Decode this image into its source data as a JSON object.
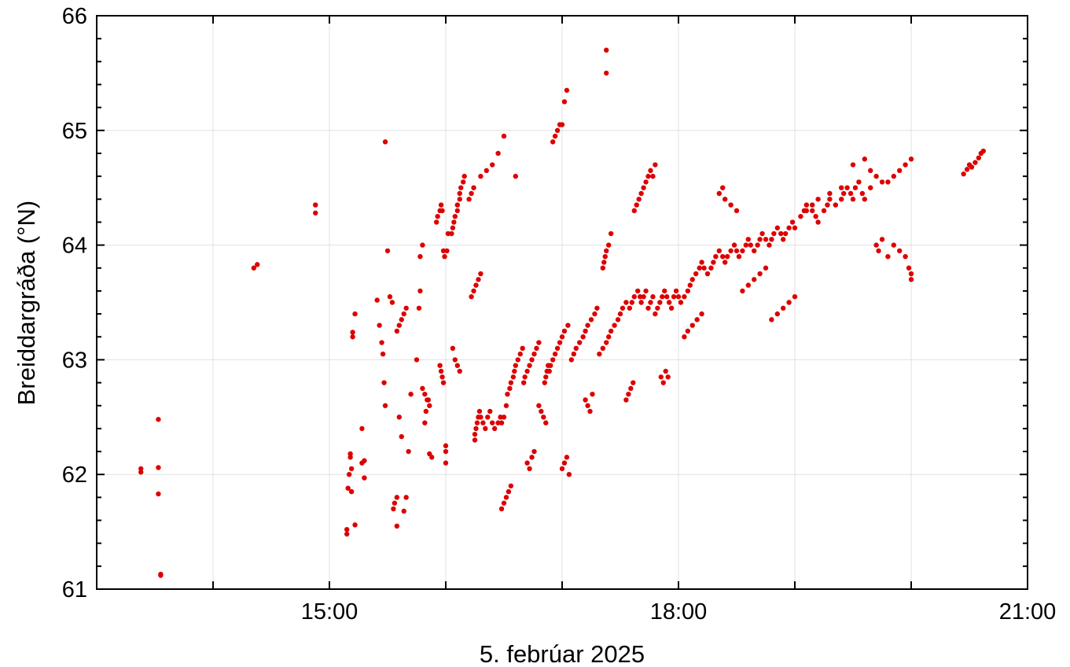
{
  "chart_data": {
    "type": "scatter",
    "xlabel": "5. febrúar 2025",
    "ylabel": "Breiddargráða (°N)",
    "x_unit": "hours since 00:00, 5 Feb 2025",
    "xlim": [
      13.0,
      21.0
    ],
    "ylim": [
      61,
      66
    ],
    "x_ticks": [
      {
        "value": 15,
        "label": "15:00"
      },
      {
        "value": 18,
        "label": "18:00"
      },
      {
        "value": 21,
        "label": "21:00"
      }
    ],
    "y_ticks": [
      {
        "value": 61,
        "label": "61"
      },
      {
        "value": 62,
        "label": "62"
      },
      {
        "value": 63,
        "label": "63"
      },
      {
        "value": 64,
        "label": "64"
      },
      {
        "value": 65,
        "label": "65"
      },
      {
        "value": 66,
        "label": "66"
      }
    ],
    "grid": true,
    "point_color": "#dd0000",
    "series": [
      {
        "x": [
          13.38,
          13.38,
          13.53,
          13.53,
          13.53,
          13.55,
          13.55,
          14.35,
          14.38,
          14.88,
          14.88,
          15.15,
          15.15,
          15.16,
          15.17,
          15.18,
          15.18,
          15.19,
          15.19,
          15.2,
          15.2,
          15.22,
          15.22,
          15.28,
          15.28,
          15.3,
          15.3,
          15.41,
          15.43,
          15.45,
          15.46,
          15.47,
          15.48,
          15.55,
          15.56,
          15.58,
          15.58,
          15.6,
          15.62,
          15.64,
          15.66,
          15.68,
          15.7,
          15.75,
          15.77,
          15.78,
          15.78,
          15.8,
          15.82,
          15.83,
          15.85,
          15.86,
          15.88,
          15.92,
          15.93,
          15.95,
          15.96,
          15.97,
          15.98,
          15.99,
          16.0,
          16.0,
          16.0,
          16.01,
          16.02,
          16.05,
          16.06,
          16.07,
          16.08,
          16.1,
          16.1,
          16.12,
          16.12,
          16.13,
          16.15,
          16.16,
          16.25,
          16.25,
          16.26,
          16.27,
          16.28,
          16.29,
          16.3,
          16.32,
          16.34,
          16.36,
          16.38,
          16.4,
          16.42,
          16.45,
          16.47,
          16.48,
          16.5,
          16.52,
          16.53,
          16.55,
          16.56,
          16.58,
          16.59,
          16.6,
          16.62,
          16.64,
          16.66,
          16.67,
          16.68,
          16.7,
          16.72,
          16.74,
          16.76,
          16.78,
          16.8,
          16.85,
          16.86,
          16.87,
          16.88,
          16.89,
          16.9,
          16.92,
          16.94,
          16.96,
          16.98,
          17.0,
          17.02,
          17.05,
          17.08,
          17.1,
          17.12,
          17.15,
          17.18,
          17.2,
          17.22,
          17.25,
          17.28,
          17.3,
          17.32,
          17.35,
          17.38,
          17.4,
          17.42,
          17.45,
          17.48,
          17.5,
          17.52,
          17.55,
          17.58,
          17.6,
          17.62,
          17.65,
          17.67,
          17.68,
          17.7,
          17.72,
          17.74,
          17.76,
          17.78,
          17.8,
          17.82,
          17.84,
          17.86,
          17.88,
          17.9,
          17.92,
          17.94,
          17.96,
          17.98,
          18.0,
          18.02,
          18.05,
          18.08,
          18.1,
          18.12,
          18.15,
          18.18,
          18.2,
          18.22,
          18.25,
          18.28,
          18.3,
          18.32,
          18.35,
          18.38,
          18.4,
          18.42,
          18.45,
          18.48,
          18.5,
          18.52,
          18.55,
          18.58,
          18.6,
          18.62,
          18.65,
          18.68,
          18.7,
          18.72,
          18.75,
          18.78,
          18.8,
          18.82,
          18.85,
          18.88,
          18.9,
          18.92,
          18.95,
          18.98,
          19.0,
          19.05,
          19.08,
          19.1,
          19.15,
          19.18,
          19.2,
          19.25,
          19.28,
          19.3,
          19.35,
          19.4,
          19.42,
          19.45,
          19.48,
          19.5,
          19.52,
          19.55,
          19.58,
          19.6,
          19.65,
          19.7,
          19.72,
          19.75,
          19.8,
          19.85,
          19.9,
          19.95,
          19.98,
          20.0,
          20.0,
          20.45,
          20.48,
          20.5,
          20.52,
          20.55,
          20.58,
          20.6,
          20.62,
          16.2,
          16.22,
          16.24,
          16.3,
          16.35,
          16.4,
          16.45,
          16.5,
          16.6,
          16.92,
          16.94,
          16.96,
          16.98,
          17.0,
          17.02,
          17.04,
          17.35,
          17.36,
          17.37,
          17.38,
          17.4,
          17.42,
          17.62,
          17.64,
          17.66,
          17.68,
          17.7,
          17.72,
          17.74,
          17.76,
          17.78,
          17.8,
          17.38,
          17.38,
          15.58,
          15.6,
          15.62,
          15.64,
          15.66,
          15.48,
          15.5,
          15.52,
          15.54,
          15.8,
          15.82,
          15.84,
          15.86,
          15.95,
          15.96,
          15.97,
          15.98,
          16.06,
          16.08,
          16.1,
          16.12,
          16.22,
          16.24,
          16.26,
          16.28,
          16.3,
          16.48,
          16.5,
          16.52,
          16.54,
          16.56,
          16.7,
          16.72,
          16.74,
          16.76,
          16.8,
          16.82,
          16.84,
          16.86,
          17.0,
          17.02,
          17.04,
          17.06,
          17.2,
          17.22,
          17.24,
          17.26,
          17.55,
          17.57,
          17.59,
          17.61,
          17.85,
          17.87,
          17.89,
          17.91,
          18.05,
          18.08,
          18.12,
          18.16,
          18.2,
          18.35,
          18.38,
          18.4,
          18.45,
          18.5,
          18.55,
          18.6,
          18.65,
          18.7,
          18.75,
          18.8,
          18.85,
          18.9,
          18.95,
          19.0,
          19.1,
          19.15,
          19.2,
          19.3,
          19.4,
          19.5,
          19.6,
          19.65,
          19.7,
          19.75,
          19.8,
          19.85,
          19.9,
          19.95,
          20.0
        ],
        "y": [
          62.02,
          62.05,
          62.48,
          62.06,
          61.83,
          61.12,
          61.13,
          63.8,
          63.83,
          64.35,
          64.28,
          61.48,
          61.52,
          61.88,
          62.0,
          62.18,
          62.15,
          61.85,
          62.05,
          63.2,
          63.24,
          61.56,
          63.4,
          62.4,
          62.1,
          62.12,
          61.97,
          63.52,
          63.3,
          63.15,
          63.05,
          62.8,
          62.6,
          61.7,
          61.75,
          61.8,
          61.55,
          62.5,
          62.33,
          61.68,
          61.8,
          62.2,
          62.7,
          63.0,
          63.45,
          63.6,
          63.9,
          64.0,
          62.45,
          62.55,
          62.65,
          62.18,
          62.15,
          64.2,
          64.25,
          64.3,
          64.35,
          64.3,
          63.95,
          63.9,
          62.2,
          62.1,
          62.25,
          63.95,
          64.1,
          64.1,
          64.15,
          64.2,
          64.25,
          64.3,
          64.35,
          64.4,
          64.45,
          64.5,
          64.55,
          64.6,
          62.3,
          62.35,
          62.4,
          62.45,
          62.5,
          62.55,
          62.5,
          62.45,
          62.4,
          62.5,
          62.55,
          62.45,
          62.4,
          62.45,
          62.5,
          62.45,
          62.5,
          62.6,
          62.7,
          62.75,
          62.8,
          62.85,
          62.9,
          62.95,
          63.0,
          63.05,
          63.1,
          62.8,
          62.85,
          62.9,
          62.95,
          63.0,
          63.05,
          63.1,
          63.15,
          62.8,
          62.85,
          62.9,
          62.95,
          62.9,
          62.95,
          63.0,
          63.05,
          63.1,
          63.15,
          63.2,
          63.25,
          63.3,
          63.0,
          63.05,
          63.1,
          63.15,
          63.2,
          63.25,
          63.3,
          63.35,
          63.4,
          63.45,
          63.05,
          63.1,
          63.15,
          63.2,
          63.25,
          63.3,
          63.35,
          63.4,
          63.45,
          63.5,
          63.45,
          63.5,
          63.55,
          63.6,
          63.55,
          63.5,
          63.55,
          63.6,
          63.45,
          63.5,
          63.55,
          63.4,
          63.45,
          63.5,
          63.55,
          63.6,
          63.55,
          63.5,
          63.45,
          63.55,
          63.6,
          63.55,
          63.5,
          63.55,
          63.6,
          63.65,
          63.7,
          63.75,
          63.8,
          63.85,
          63.8,
          63.75,
          63.8,
          63.85,
          63.9,
          63.95,
          63.9,
          63.85,
          63.9,
          63.95,
          64.0,
          63.95,
          63.9,
          63.95,
          64.0,
          64.05,
          64.0,
          63.95,
          64.0,
          64.05,
          64.1,
          64.05,
          64.0,
          64.05,
          64.1,
          64.15,
          64.1,
          64.05,
          64.1,
          64.15,
          64.2,
          64.15,
          64.25,
          64.3,
          64.35,
          64.3,
          64.25,
          64.2,
          64.3,
          64.35,
          64.4,
          64.35,
          64.4,
          64.45,
          64.5,
          64.45,
          64.4,
          64.5,
          64.55,
          64.45,
          64.4,
          64.5,
          64.0,
          63.95,
          64.05,
          63.9,
          64.0,
          63.95,
          63.9,
          63.8,
          63.75,
          63.7,
          64.62,
          64.66,
          64.7,
          64.68,
          64.72,
          64.76,
          64.8,
          64.82,
          64.4,
          64.45,
          64.5,
          64.6,
          64.65,
          64.7,
          64.8,
          64.95,
          64.6,
          64.9,
          64.95,
          65.0,
          65.05,
          65.05,
          65.25,
          65.35,
          63.8,
          63.85,
          63.9,
          63.95,
          64.0,
          64.1,
          64.3,
          64.35,
          64.4,
          64.45,
          64.5,
          64.55,
          64.6,
          64.65,
          64.6,
          64.7,
          65.7,
          65.5,
          63.25,
          63.3,
          63.35,
          63.4,
          63.45,
          64.9,
          63.95,
          63.55,
          63.5,
          62.75,
          62.7,
          62.65,
          62.6,
          62.95,
          62.9,
          62.85,
          62.8,
          63.1,
          63.0,
          62.95,
          62.9,
          63.55,
          63.6,
          63.65,
          63.7,
          63.75,
          61.7,
          61.75,
          61.8,
          61.85,
          61.9,
          62.1,
          62.05,
          62.15,
          62.2,
          62.6,
          62.55,
          62.5,
          62.45,
          62.05,
          62.1,
          62.15,
          62.0,
          62.65,
          62.6,
          62.55,
          62.7,
          62.65,
          62.7,
          62.75,
          62.8,
          62.85,
          62.8,
          62.9,
          62.85,
          63.2,
          63.25,
          63.3,
          63.35,
          63.4,
          64.45,
          64.5,
          64.4,
          64.35,
          64.3,
          63.6,
          63.65,
          63.7,
          63.75,
          63.8,
          63.35,
          63.4,
          63.45,
          63.5,
          63.55,
          64.3,
          64.35,
          64.4,
          64.45,
          64.5,
          64.7,
          64.75,
          64.65,
          64.6,
          64.55,
          64.55,
          64.6,
          64.65,
          64.7,
          64.75
        ]
      }
    ]
  }
}
